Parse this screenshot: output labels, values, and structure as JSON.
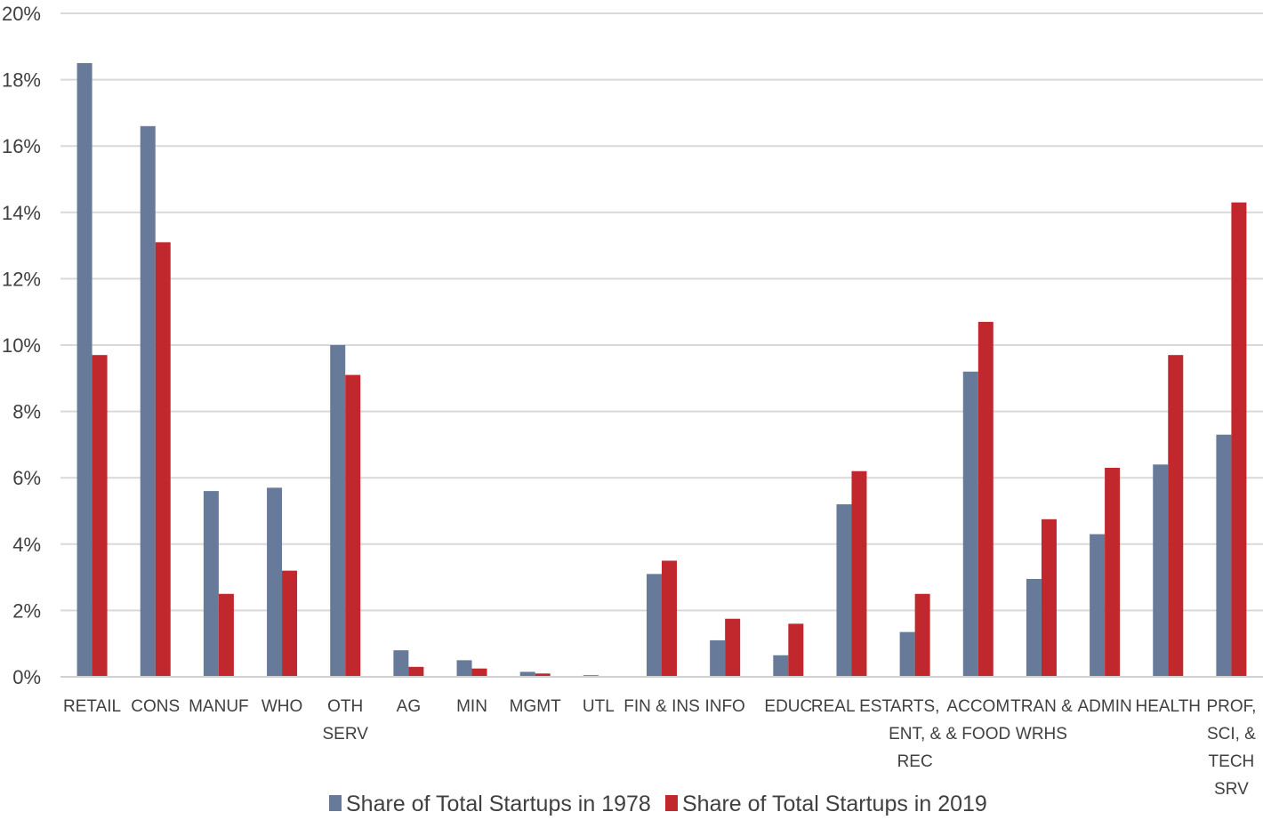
{
  "chart_data": {
    "type": "bar",
    "categories": [
      [
        "RETAIL"
      ],
      [
        "CONS"
      ],
      [
        "MANUF"
      ],
      [
        "WHO"
      ],
      [
        "OTH",
        "SERV"
      ],
      [
        "AG"
      ],
      [
        "MIN"
      ],
      [
        "MGMT"
      ],
      [
        "UTL"
      ],
      [
        "FIN & INS"
      ],
      [
        "INFO"
      ],
      [
        "EDUC"
      ],
      [
        "REAL EST"
      ],
      [
        "ARTS,",
        "ENT, &",
        "REC"
      ],
      [
        "ACCOM",
        "& FOOD"
      ],
      [
        "TRAN &",
        "WRHS"
      ],
      [
        "ADMIN"
      ],
      [
        "HEALTH"
      ],
      [
        "PROF,",
        "SCI, &",
        "TECH",
        "SRV"
      ]
    ],
    "series": [
      {
        "name": "Share of Total Startups in 1978",
        "color": "#687a99",
        "values": [
          18.5,
          16.6,
          5.6,
          5.7,
          10.0,
          0.8,
          0.5,
          0.15,
          0.05,
          3.1,
          1.1,
          0.65,
          5.2,
          1.35,
          9.2,
          2.95,
          4.3,
          6.4,
          7.3
        ]
      },
      {
        "name": "Share of Total Startups in 2019",
        "color": "#c0282d",
        "values": [
          9.7,
          13.1,
          2.5,
          3.2,
          9.1,
          0.3,
          0.25,
          0.1,
          0.0,
          3.5,
          1.75,
          1.6,
          6.2,
          2.5,
          10.7,
          4.75,
          6.3,
          9.7,
          14.3
        ]
      }
    ],
    "yticks": [
      "0%",
      "2%",
      "4%",
      "6%",
      "8%",
      "10%",
      "12%",
      "14%",
      "16%",
      "18%",
      "20%"
    ],
    "ylim": [
      0,
      20
    ],
    "grid": true,
    "legend_position": "bottom"
  }
}
